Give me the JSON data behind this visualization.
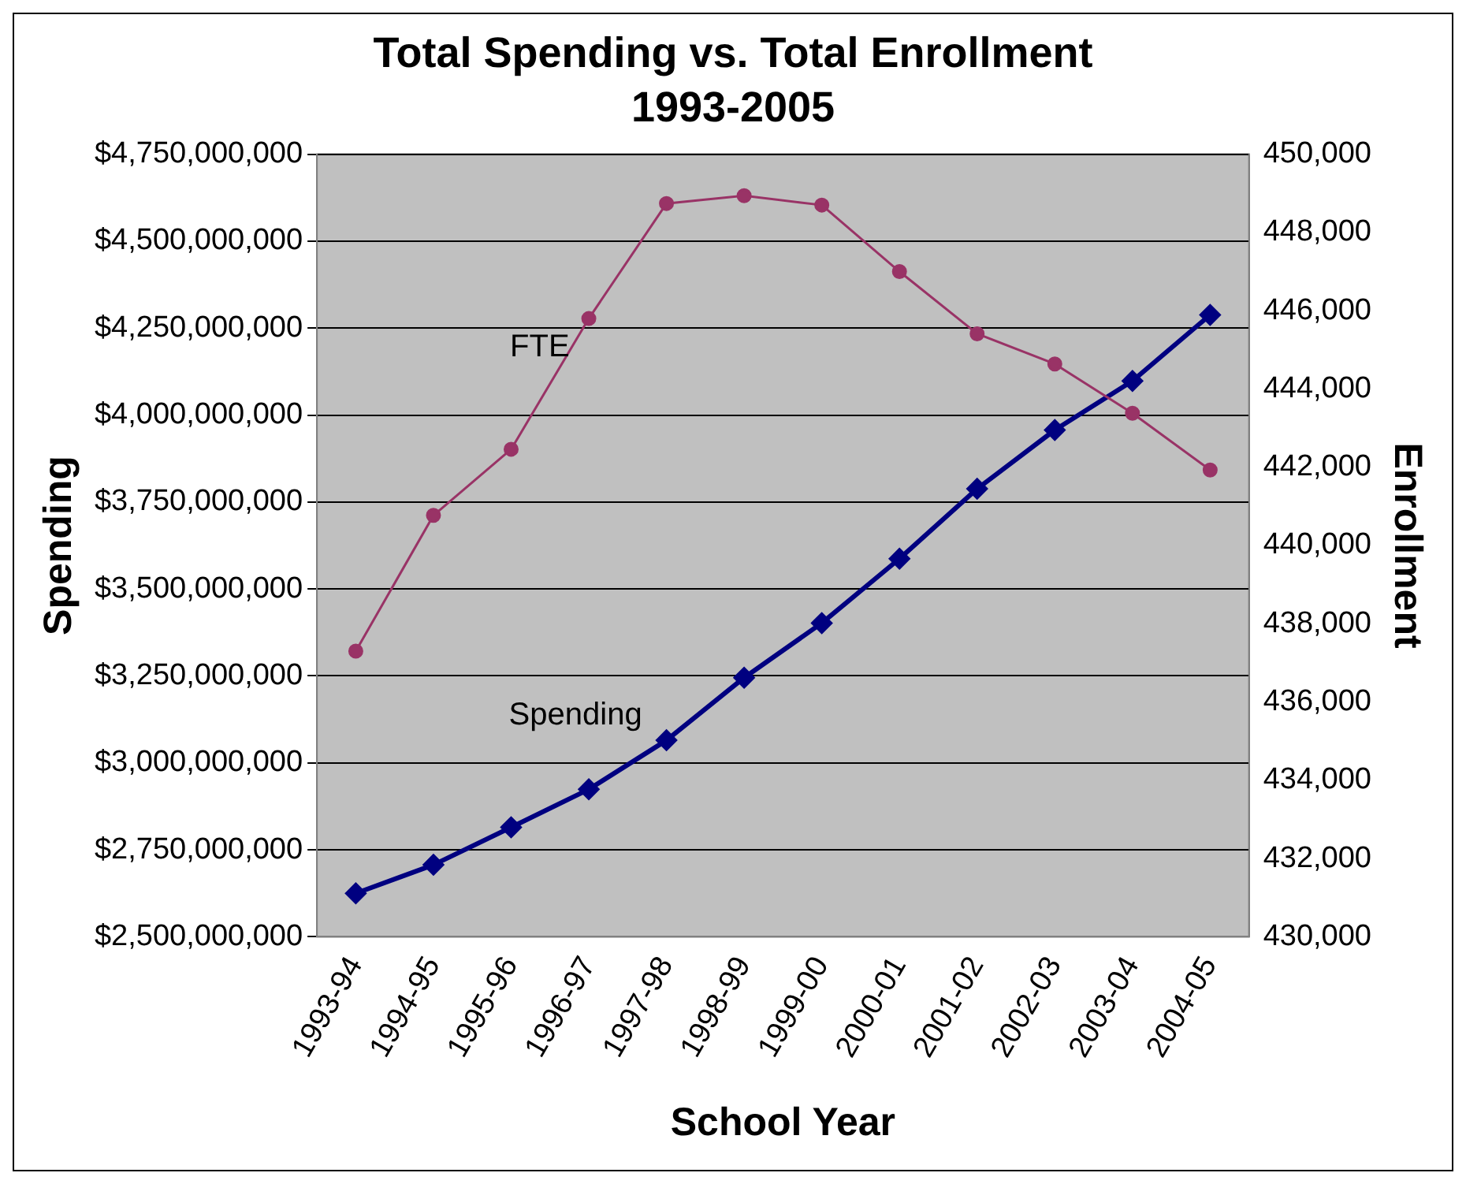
{
  "chart_data": {
    "type": "line",
    "title": "Total Spending vs. Total Enrollment",
    "subtitle": "1993-2005",
    "xlabel": "School Year",
    "ylabel": "Spending",
    "y2label": "Enrollment",
    "categories": [
      "1993-94",
      "1994-95",
      "1995-96",
      "1996-97",
      "1997-98",
      "1998-99",
      "1999-00",
      "2000-01",
      "2001-02",
      "2002-03",
      "2003-04",
      "2004-05"
    ],
    "series": [
      {
        "name": "FTE",
        "color": "#993366",
        "axis": "y2",
        "marker": "circle",
        "values": [
          437300,
          440770,
          442460,
          445800,
          448740,
          448940,
          448700,
          447000,
          445410,
          444640,
          443380,
          441930
        ]
      },
      {
        "name": "Spending",
        "color": "#000080",
        "marker": "diamond",
        "values": [
          2625000000,
          2707000000,
          2815000000,
          2924000000,
          3065000000,
          3245000000,
          3402000000,
          3587000000,
          3788000000,
          3957000000,
          4098000000,
          4288000000
        ]
      }
    ],
    "ylim": [
      2500000000,
      4750000000
    ],
    "yticks": [
      {
        "value": 2500000000,
        "label": "$2,500,000,000"
      },
      {
        "value": 2750000000,
        "label": "$2,750,000,000"
      },
      {
        "value": 3000000000,
        "label": "$3,000,000,000"
      },
      {
        "value": 3250000000,
        "label": "$3,250,000,000"
      },
      {
        "value": 3500000000,
        "label": "$3,500,000,000"
      },
      {
        "value": 3750000000,
        "label": "$3,750,000,000"
      },
      {
        "value": 4000000000,
        "label": "$4,000,000,000"
      },
      {
        "value": 4250000000,
        "label": "$4,250,000,000"
      },
      {
        "value": 4500000000,
        "label": "$4,500,000,000"
      },
      {
        "value": 4750000000,
        "label": "$4,750,000,000"
      }
    ],
    "y2lim": [
      430000,
      450000
    ],
    "y2ticks": [
      {
        "value": 430000,
        "label": "430,000"
      },
      {
        "value": 432000,
        "label": "432,000"
      },
      {
        "value": 434000,
        "label": "434,000"
      },
      {
        "value": 436000,
        "label": "436,000"
      },
      {
        "value": 438000,
        "label": "438,000"
      },
      {
        "value": 440000,
        "label": "440,000"
      },
      {
        "value": 442000,
        "label": "442,000"
      },
      {
        "value": 444000,
        "label": "444,000"
      },
      {
        "value": 446000,
        "label": "446,000"
      },
      {
        "value": 448000,
        "label": "448,000"
      },
      {
        "value": 450000,
        "label": "450,000"
      }
    ],
    "grid": "y",
    "legend": false
  }
}
